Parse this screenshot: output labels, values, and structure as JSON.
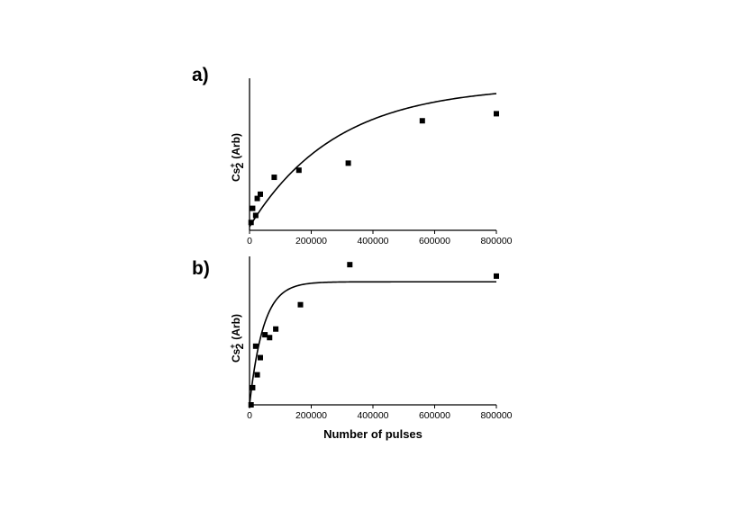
{
  "chart_data": [
    {
      "panel": "a)",
      "type": "scatter",
      "ylabel": {
        "main": "Cs",
        "sub": "2",
        "sup": "+",
        "unit": "(Arb)"
      },
      "xlabel": "",
      "xlim": [
        0,
        800000
      ],
      "xticks": [
        "0",
        "200000",
        "400000",
        "600000",
        "800000"
      ],
      "ylim": [
        0,
        1
      ],
      "points": [
        {
          "x": 5000,
          "y": 0.03
        },
        {
          "x": 10000,
          "y": 0.13
        },
        {
          "x": 20000,
          "y": 0.08
        },
        {
          "x": 25000,
          "y": 0.2
        },
        {
          "x": 35000,
          "y": 0.23
        },
        {
          "x": 80000,
          "y": 0.35
        },
        {
          "x": 160000,
          "y": 0.4
        },
        {
          "x": 320000,
          "y": 0.45
        },
        {
          "x": 560000,
          "y": 0.75
        },
        {
          "x": 800000,
          "y": 0.8
        }
      ],
      "fit": {
        "model": "exponential-rise",
        "y0": 0.0,
        "amplitude": 1.0,
        "tau": 280000
      },
      "grid": false,
      "legend": "none"
    },
    {
      "panel": "b)",
      "type": "scatter",
      "ylabel": {
        "main": "Cs",
        "sub": "2",
        "sup": "+",
        "unit": "(Arb)"
      },
      "xlabel": "Number of pulses",
      "xlim": [
        0,
        800000
      ],
      "xticks": [
        "0",
        "200000",
        "400000",
        "600000",
        "800000"
      ],
      "ylim": [
        0,
        1
      ],
      "points": [
        {
          "x": 5000,
          "y": 0.0
        },
        {
          "x": 10000,
          "y": 0.12
        },
        {
          "x": 20000,
          "y": 0.41
        },
        {
          "x": 25000,
          "y": 0.21
        },
        {
          "x": 35000,
          "y": 0.33
        },
        {
          "x": 50000,
          "y": 0.49
        },
        {
          "x": 65000,
          "y": 0.47
        },
        {
          "x": 85000,
          "y": 0.53
        },
        {
          "x": 165000,
          "y": 0.7
        },
        {
          "x": 325000,
          "y": 0.98
        },
        {
          "x": 800000,
          "y": 0.9
        }
      ],
      "fit": {
        "model": "exponential-rise",
        "y0": 0.0,
        "amplitude": 0.86,
        "tau": 45000
      },
      "grid": false,
      "legend": "none"
    }
  ]
}
